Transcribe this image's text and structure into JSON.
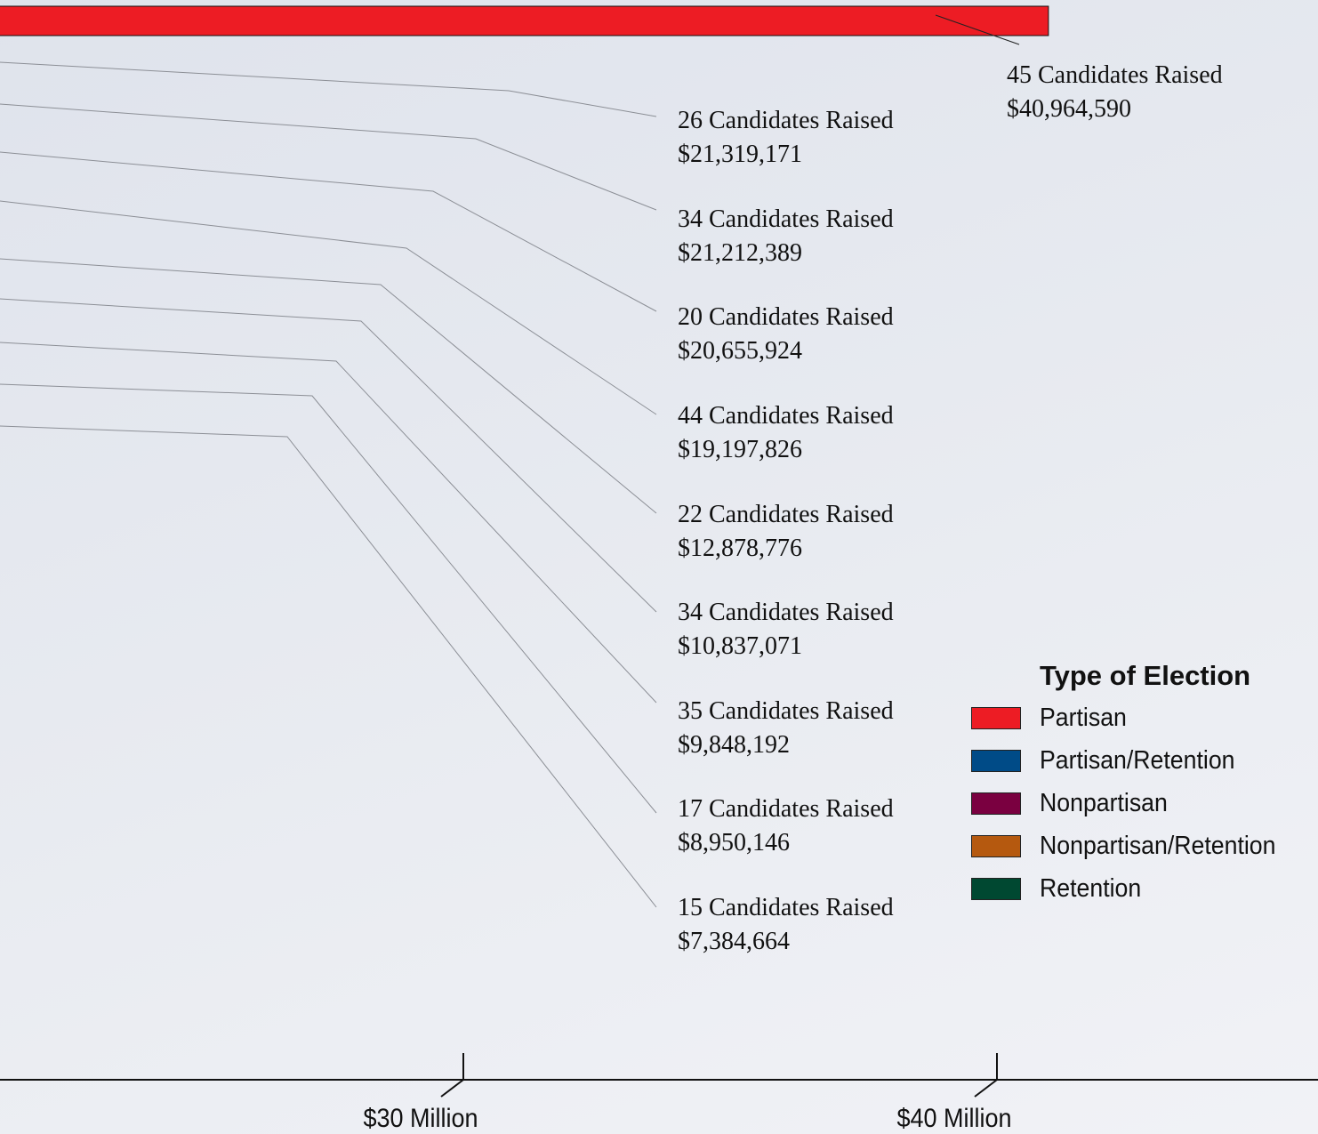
{
  "chart_data": {
    "type": "bar",
    "orientation": "horizontal",
    "title": "",
    "xlabel": "",
    "ylabel": "",
    "x_ticks": [
      {
        "label": "$30 Million",
        "value": 30000000
      },
      {
        "label": "$40 Million",
        "value": 40000000
      }
    ],
    "series": [
      {
        "type_of_election": "Partisan",
        "values": [
          40964590
        ],
        "annotations": [
          {
            "line1": "45 Candidates Raised",
            "line2": "$40,964,590",
            "candidates": 45,
            "value": 40964590
          }
        ]
      }
    ],
    "annotations": [
      {
        "line1": "45 Candidates Raised",
        "line2": "$40,964,590",
        "candidates": 45,
        "value": 40964590
      },
      {
        "line1": "26 Candidates Raised",
        "line2": "$21,319,171",
        "candidates": 26,
        "value": 21319171
      },
      {
        "line1": "34 Candidates Raised",
        "line2": "$21,212,389",
        "candidates": 34,
        "value": 21212389
      },
      {
        "line1": "20 Candidates Raised",
        "line2": "$20,655,924",
        "candidates": 20,
        "value": 20655924
      },
      {
        "line1": "44 Candidates Raised",
        "line2": "$19,197,826",
        "candidates": 44,
        "value": 19197826
      },
      {
        "line1": "22 Candidates Raised",
        "line2": "$12,878,776",
        "candidates": 22,
        "value": 12878776
      },
      {
        "line1": "34 Candidates Raised",
        "line2": "$10,837,071",
        "candidates": 34,
        "value": 10837071
      },
      {
        "line1": "35 Candidates Raised",
        "line2": "$9,848,192",
        "candidates": 35,
        "value": 9848192
      },
      {
        "line1": "17 Candidates Raised",
        "line2": "$8,950,146",
        "candidates": 17,
        "value": 8950146
      },
      {
        "line1": "15 Candidates Raised",
        "line2": "$7,384,664",
        "candidates": 15,
        "value": 7384664
      }
    ],
    "legend": {
      "title": "Type of Election",
      "position": "right",
      "items": [
        {
          "label": "Partisan",
          "color": "#ed1c24"
        },
        {
          "label": "Partisan/Retention",
          "color": "#004b87"
        },
        {
          "label": "Nonpartisan",
          "color": "#7a0040"
        },
        {
          "label": "Nonpartisan/Retention",
          "color": "#b5590f"
        },
        {
          "label": "Retention",
          "color": "#004831"
        }
      ]
    },
    "grid": false
  }
}
